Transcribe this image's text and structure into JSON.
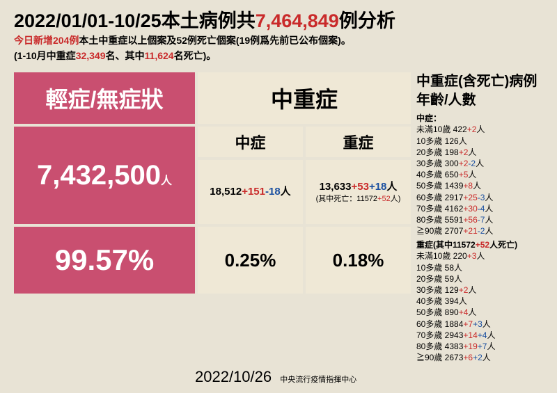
{
  "header": {
    "title_pre": "2022/01/01-10/25本土病例共",
    "title_num": "7,464,849",
    "title_post": "例分析",
    "sub1_a": "今日新增204例",
    "sub1_b": "本土中重症以上個案及52例死亡個案(19例爲先前已公布個案)。",
    "sub2_a": "(1-10月中重症",
    "sub2_b": "32,349",
    "sub2_c": "名、其中",
    "sub2_d": "11,624",
    "sub2_e": "名死亡)。"
  },
  "table": {
    "head_left": "輕症/無症狀",
    "head_right": "中重症",
    "mild_count": "7,432,500",
    "mild_unit": "人",
    "mid_head": "中症",
    "sev_head": "重症",
    "mid_base": "18,512",
    "mid_plus": "+151",
    "mid_minus": "-18",
    "mid_unit": "人",
    "sev_base": "13,633",
    "sev_plus": "+53",
    "sev_plus2": "+18",
    "sev_unit": "人",
    "sev_note_a": "(其中死亡：11572",
    "sev_note_b": "+52",
    "sev_note_c": "人)",
    "pct_mild": "99.57%",
    "pct_mid": "0.25%",
    "pct_sev": "0.18%"
  },
  "side": {
    "title": "中重症(含死亡)病例年齡/人數",
    "mid_label": "中症：",
    "mid_rows": [
      {
        "age": "未滿10歲",
        "base": "422",
        "r": "+2",
        "b": "",
        "u": "人"
      },
      {
        "age": "10多歲",
        "base": "126",
        "r": "",
        "b": "",
        "u": "人"
      },
      {
        "age": "20多歲",
        "base": "198",
        "r": "+2",
        "b": "",
        "u": "人"
      },
      {
        "age": "30多歲",
        "base": "300",
        "r": "+2",
        "b": "-2",
        "u": "人"
      },
      {
        "age": "40多歲",
        "base": "650",
        "r": "+5",
        "b": "",
        "u": "人"
      },
      {
        "age": "50多歲",
        "base": "1439",
        "r": "+8",
        "b": "",
        "u": "人"
      },
      {
        "age": "60多歲",
        "base": "2917",
        "r": "+25",
        "b": "-3",
        "u": "人"
      },
      {
        "age": "70多歲",
        "base": "4162",
        "r": "+30",
        "b": "-4",
        "u": "人"
      },
      {
        "age": "80多歲",
        "base": "5591",
        "r": "+56",
        "b": "-7",
        "u": "人"
      },
      {
        "age": "≧90歲",
        "base": "2707",
        "r": "+21",
        "b": "-2",
        "u": "人"
      }
    ],
    "sev_label_a": "重症(其中11572",
    "sev_label_b": "+52",
    "sev_label_c": "人死亡)",
    "sev_rows": [
      {
        "age": "未滿10歲",
        "base": "220",
        "r": "+3",
        "b": "",
        "u": "人"
      },
      {
        "age": "10多歲",
        "base": "58",
        "r": "",
        "b": "",
        "u": "人"
      },
      {
        "age": "20多歲",
        "base": "59",
        "r": "",
        "b": "",
        "u": "人"
      },
      {
        "age": "30多歲",
        "base": "129",
        "r": "+2",
        "b": "",
        "u": "人"
      },
      {
        "age": "40多歲",
        "base": "394",
        "r": "",
        "b": "",
        "u": "人"
      },
      {
        "age": "50多歲",
        "base": "890",
        "r": "+4",
        "b": "",
        "u": "人"
      },
      {
        "age": "60多歲",
        "base": "1884",
        "r": "+7",
        "b": "+3",
        "u": "人"
      },
      {
        "age": "70多歲",
        "base": "2943",
        "r": "+14",
        "b": "+4",
        "u": "人"
      },
      {
        "age": "80多歲",
        "base": "4383",
        "r": "+19",
        "b": "+7",
        "u": "人"
      },
      {
        "age": "≧90歲",
        "base": "2673",
        "r": "+6",
        "b": "+2",
        "u": "人"
      }
    ]
  },
  "footer": {
    "date": "2022/10/26",
    "org": "中央流行疫情指揮中心"
  }
}
